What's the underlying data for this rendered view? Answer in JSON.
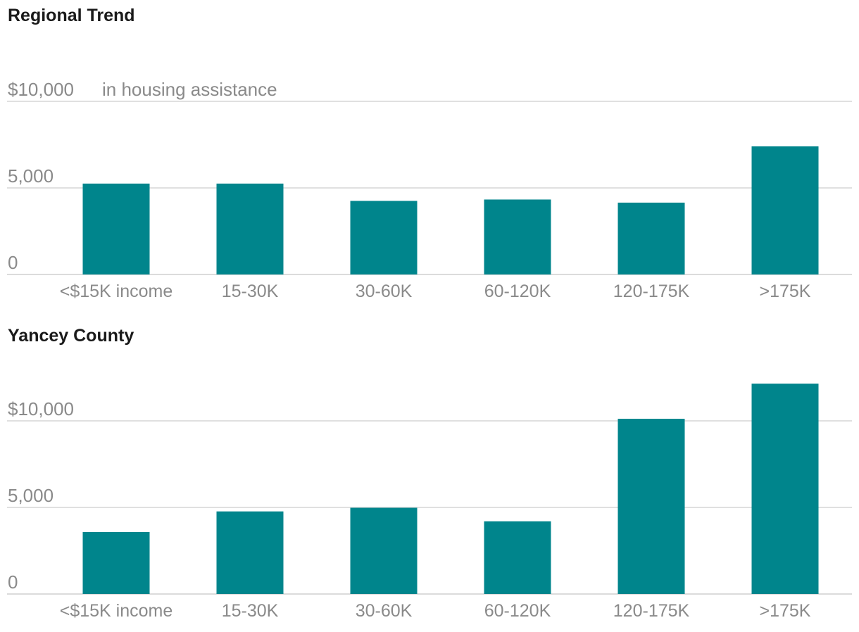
{
  "colors": {
    "bar": "#00858c",
    "grid": "#d6d6d6",
    "text_muted": "#8a8a8a",
    "title": "#1a1a1a"
  },
  "chart_data": [
    {
      "type": "bar",
      "title": "Regional Trend",
      "ylabel": "in housing assistance",
      "categories": [
        "<$15K income",
        "15-30K",
        "30-60K",
        "60-120K",
        "120-175K",
        ">175K"
      ],
      "values": [
        5250,
        5250,
        4250,
        4330,
        4150,
        7400
      ],
      "ylim": [
        0,
        10000
      ],
      "yticks": [
        0,
        5000,
        10000
      ],
      "ytick_labels": [
        "0",
        "5,000",
        "$10,000"
      ],
      "grid": true
    },
    {
      "type": "bar",
      "title": "Yancey County",
      "ylabel": "",
      "categories": [
        "<$15K income",
        "15-30K",
        "30-60K",
        "60-120K",
        "120-175K",
        ">175K"
      ],
      "values": [
        3580,
        4770,
        4980,
        4200,
        10120,
        12150
      ],
      "ylim": [
        0,
        10000
      ],
      "yticks": [
        0,
        5000,
        10000
      ],
      "ytick_labels": [
        "0",
        "5,000",
        "$10,000"
      ],
      "grid": true
    }
  ]
}
